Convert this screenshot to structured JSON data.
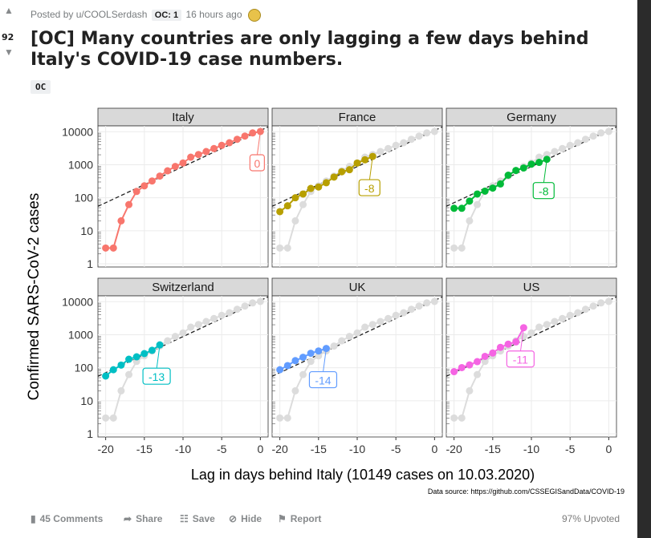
{
  "post": {
    "score": "92",
    "meta_prefix": "Posted by u/COOLSerdash",
    "user_flair": "OC: 1",
    "time": "16 hours ago",
    "title": "[OC] Many countries are only lagging a few days behind Italy's COVID-19 case numbers.",
    "post_flair": "OC"
  },
  "actions": {
    "comments": "45 Comments",
    "share": "Share",
    "save": "Save",
    "hide": "Hide",
    "report": "Report",
    "upvoted": "97% Upvoted"
  },
  "icons": {
    "upvote": "arrow-up-icon",
    "downvote": "arrow-down-icon",
    "comments": "comment-icon",
    "share": "share-icon",
    "save": "save-icon",
    "hide": "hide-icon",
    "report": "flag-icon",
    "award": "award-icon"
  },
  "chart_data": {
    "type": "scatter",
    "ylabel": "Confirmed SARS-CoV-2 cases",
    "xlabel": "Lag in days behind Italy (10149 cases on 10.03.2020)",
    "source": "Data source: https://github.com/CSSEGISandData/COVID-19",
    "x_ticks": [
      "-20",
      "-15",
      "-10",
      "-5",
      "0"
    ],
    "y_ticks": [
      "10000",
      "1000",
      "100",
      "10",
      "1"
    ],
    "xlim": [
      -21,
      1
    ],
    "ylim": [
      1,
      10000
    ],
    "y_scale": "log",
    "grid": true,
    "reference_line": {
      "style": "dashed",
      "x": [
        -21,
        1
      ],
      "y": [
        55,
        14000
      ]
    },
    "italy_background": {
      "x": [
        -20,
        -19,
        -18,
        -17,
        -16,
        -15,
        -14,
        -13,
        -12,
        -11,
        -10,
        -9,
        -8,
        -7,
        -6,
        -5,
        -4,
        -3,
        -2,
        -1,
        0
      ],
      "y": [
        3,
        3,
        20,
        62,
        155,
        229,
        322,
        453,
        655,
        888,
        1128,
        1694,
        2036,
        2502,
        3089,
        3858,
        4636,
        5883,
        7375,
        9172,
        10149
      ]
    },
    "panels": [
      {
        "name": "Italy",
        "color": "#f8766d",
        "label": "0",
        "x": [
          -20,
          -19,
          -18,
          -17,
          -16,
          -15,
          -14,
          -13,
          -12,
          -11,
          -10,
          -9,
          -8,
          -7,
          -6,
          -5,
          -4,
          -3,
          -2,
          -1,
          0
        ],
        "y": [
          3,
          3,
          20,
          62,
          155,
          229,
          322,
          453,
          655,
          888,
          1128,
          1694,
          2036,
          2502,
          3089,
          3858,
          4636,
          5883,
          7375,
          9172,
          10149
        ]
      },
      {
        "name": "France",
        "color": "#b79f00",
        "label": "-8",
        "x": [
          -20,
          -19,
          -18,
          -17,
          -16,
          -15,
          -14,
          -13,
          -12,
          -11,
          -10,
          -9,
          -8
        ],
        "y": [
          38,
          57,
          100,
          130,
          191,
          212,
          285,
          423,
          613,
          706,
          1126,
          1412,
          1784
        ]
      },
      {
        "name": "Germany",
        "color": "#00ba38",
        "label": "-8",
        "x": [
          -20,
          -19,
          -18,
          -17,
          -16,
          -15,
          -14,
          -13,
          -12,
          -11,
          -10,
          -9,
          -8
        ],
        "y": [
          48,
          48,
          79,
          130,
          159,
          196,
          262,
          482,
          670,
          799,
          1040,
          1176,
          1457
        ]
      },
      {
        "name": "Switzerland",
        "color": "#00bfc4",
        "label": "-13",
        "x": [
          -20,
          -19,
          -18,
          -17,
          -16,
          -15,
          -14,
          -13
        ],
        "y": [
          56,
          87,
          120,
          181,
          214,
          268,
          337,
          491
        ]
      },
      {
        "name": "UK",
        "color": "#619cff",
        "label": "-14",
        "x": [
          -20,
          -19,
          -18,
          -17,
          -16,
          -15,
          -14
        ],
        "y": [
          87,
          116,
          164,
          207,
          274,
          322,
          384
        ]
      },
      {
        "name": "US",
        "color": "#f564e3",
        "label": "-11",
        "x": [
          -20,
          -19,
          -18,
          -17,
          -16,
          -15,
          -14,
          -13,
          -12,
          -11
        ],
        "y": [
          76,
          101,
          122,
          153,
          221,
          279,
          414,
          517,
          605,
          1629
        ]
      }
    ]
  }
}
